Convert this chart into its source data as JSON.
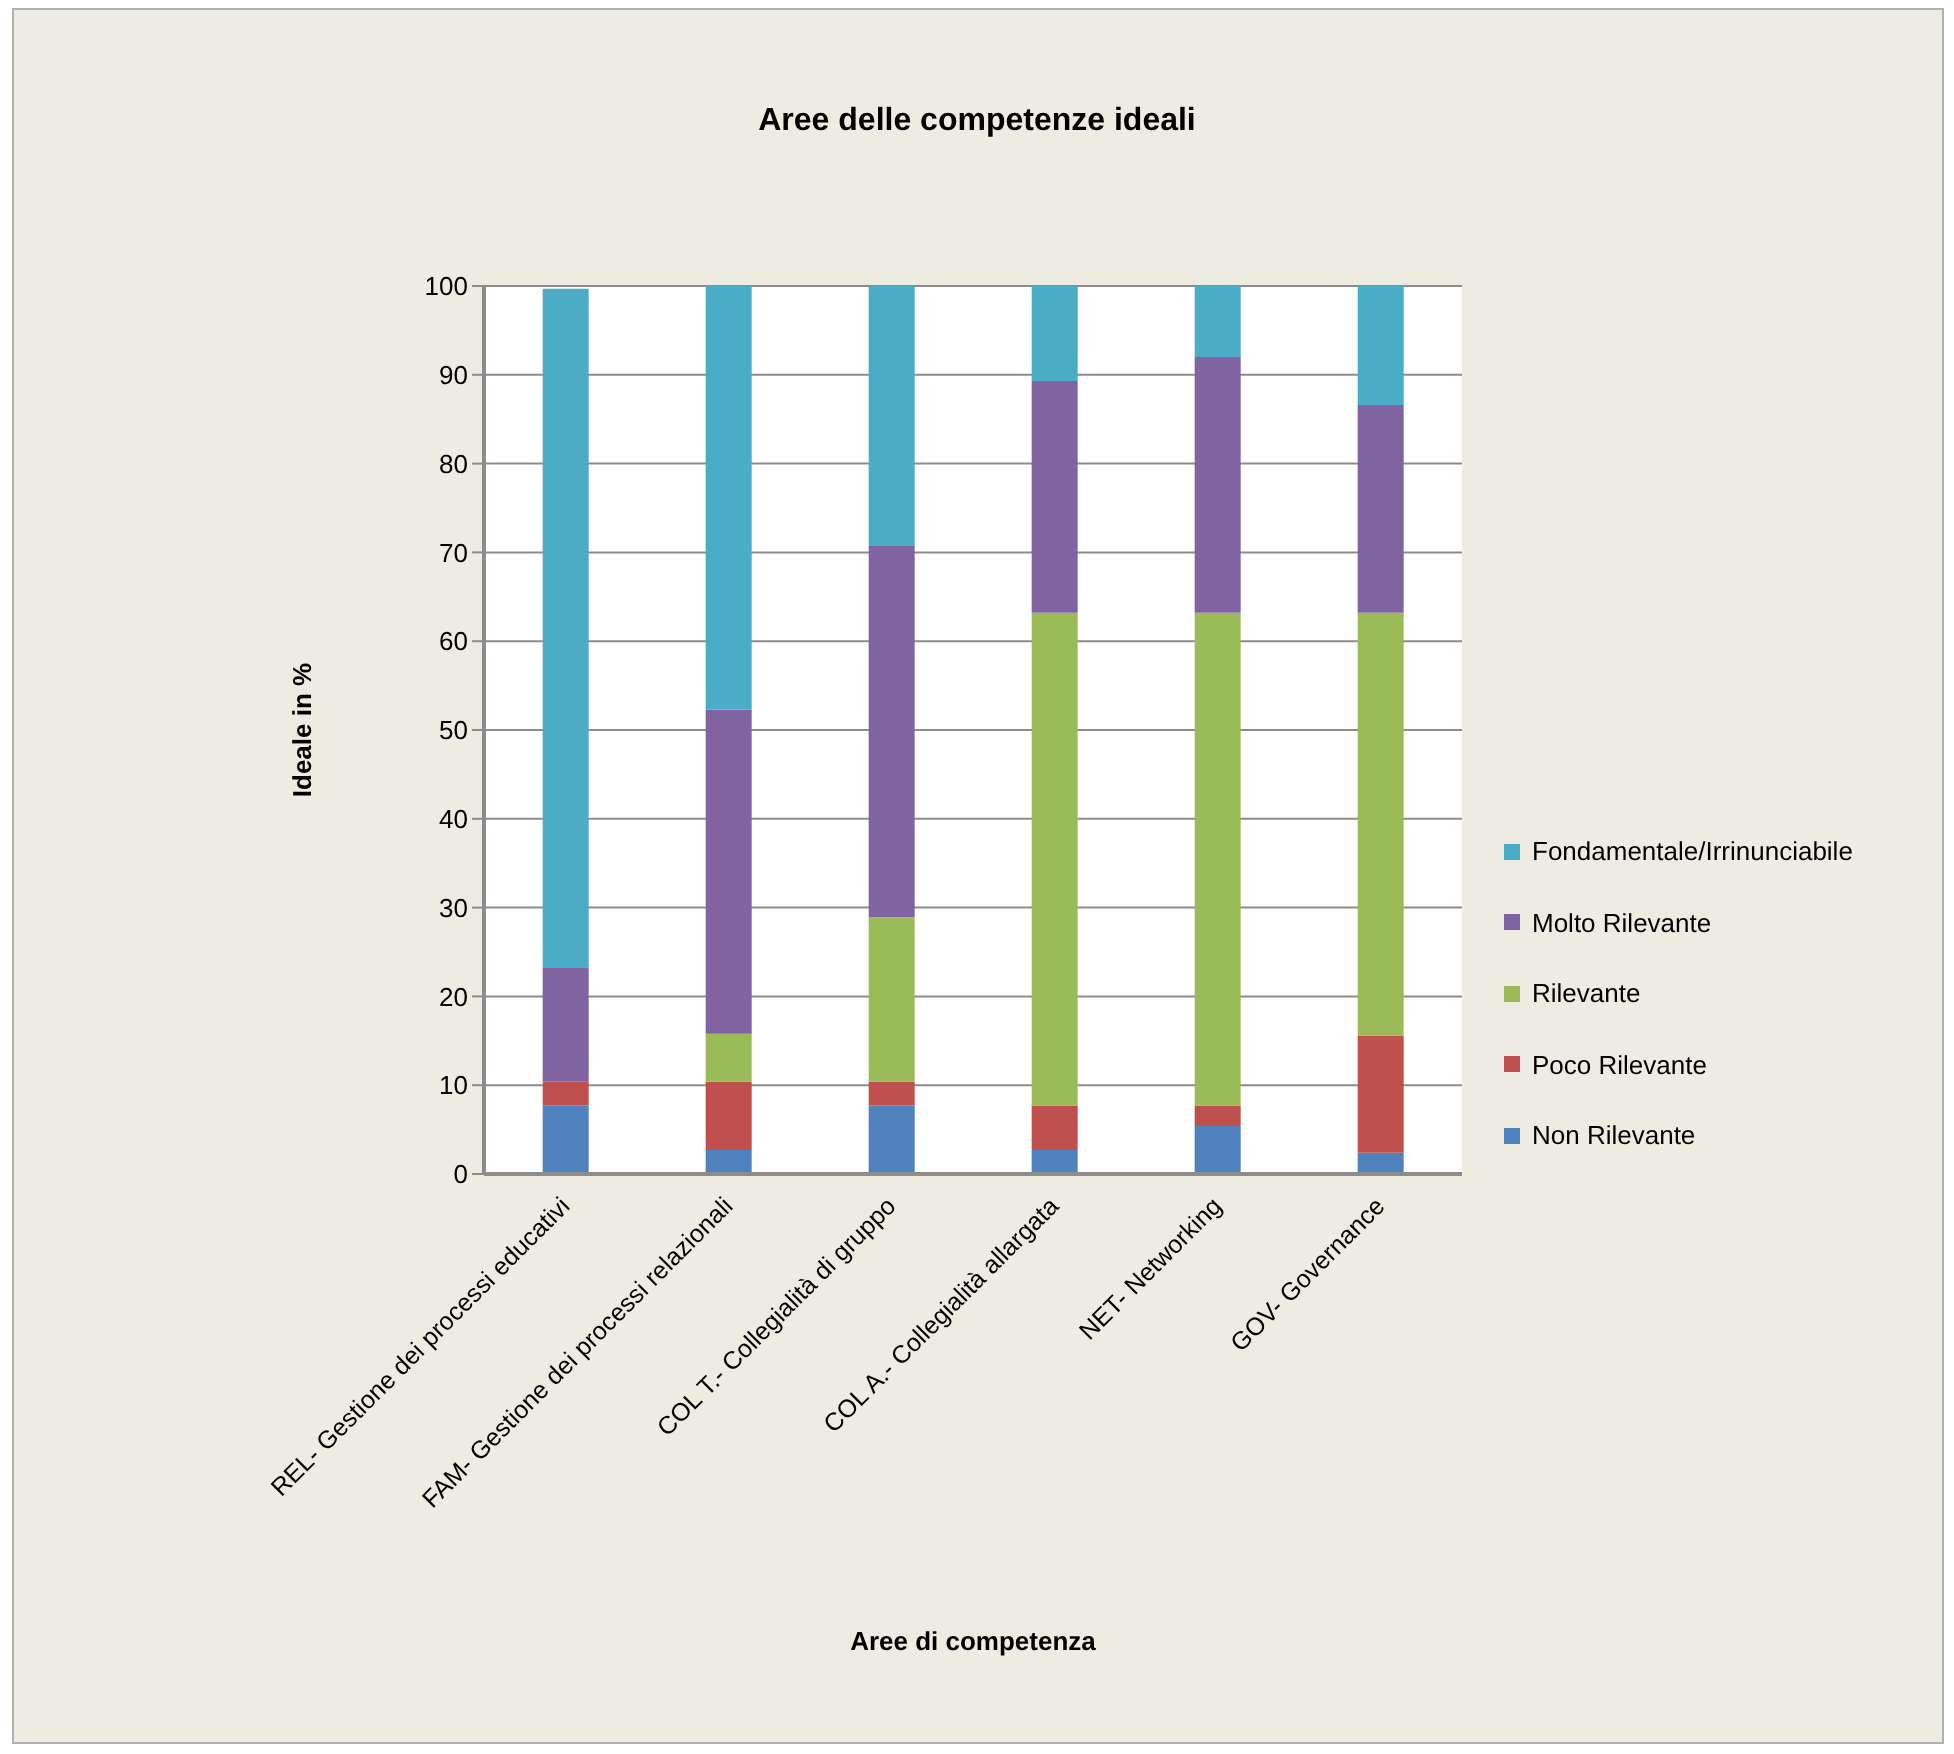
{
  "chart_data": {
    "type": "bar",
    "stacked": true,
    "title": "Aree delle competenze ideali",
    "xlabel": "Aree di competenza",
    "ylabel": "Ideale in %",
    "categories": [
      "REL- Gestione dei processi educativi",
      "FAM- Gestione dei processi relazionali",
      "COL T.- Collegialità di gruppo",
      "COL A.- Collegialità allargata",
      "NET- Networking",
      "GOV- Governance"
    ],
    "series": [
      {
        "name": "Non Rilevante",
        "color": "#4f81bd",
        "values": [
          7.7,
          2.7,
          7.7,
          2.7,
          5.4,
          2.4
        ]
      },
      {
        "name": "Poco Rilevante",
        "color": "#c0504d",
        "values": [
          2.7,
          7.7,
          2.7,
          5.0,
          2.3,
          13.2
        ]
      },
      {
        "name": "Rilevante",
        "color": "#9bbb59",
        "values": [
          0,
          5.4,
          18.5,
          55.5,
          55.5,
          47.6
        ]
      },
      {
        "name": "Molto Rilevante",
        "color": "#8064a2",
        "values": [
          12.8,
          36.5,
          41.9,
          26.1,
          28.8,
          23.4
        ]
      },
      {
        "name": "Fondamentale/Irrinunciabile",
        "color": "#4bacc6",
        "values": [
          76.5,
          47.7,
          29.2,
          10.7,
          8.0,
          13.4
        ]
      }
    ],
    "ylim": [
      0,
      100
    ],
    "yticks": [
      0,
      10,
      20,
      30,
      40,
      50,
      60,
      70,
      80,
      90,
      100
    ],
    "grid": "y",
    "legend": "right"
  }
}
